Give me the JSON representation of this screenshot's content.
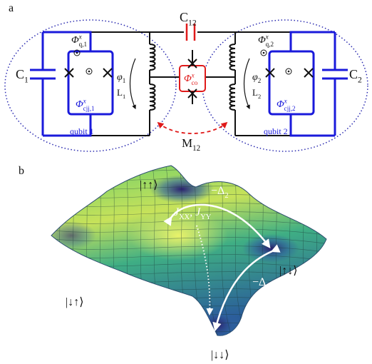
{
  "panel_a": {
    "label": "a",
    "c12": {
      "base": "C",
      "sub": "12"
    },
    "c1": {
      "base": "C",
      "sub": "1"
    },
    "c2": {
      "base": "C",
      "sub": "2"
    },
    "phi_q1": {
      "base": "Φ",
      "sup": "x",
      "sub": "q,1"
    },
    "phi_cjj1": {
      "base": "Φ",
      "sup": "x",
      "sub": "cjj,1"
    },
    "phase1": {
      "base": "φ",
      "sub": "1"
    },
    "l1": {
      "base": "L",
      "sub": "1"
    },
    "phi_co": {
      "base": "Φ",
      "sup": "x",
      "sub": "co"
    },
    "phase2": {
      "base": "φ",
      "sub": "2"
    },
    "l2": {
      "base": "L",
      "sub": "2"
    },
    "phi_q2": {
      "base": "Φ",
      "sup": "x",
      "sub": "q,2"
    },
    "phi_cjj2": {
      "base": "Φ",
      "sup": "x",
      "sub": "cjj,2"
    },
    "qubit1": {
      "base": "qubit 1"
    },
    "qubit2": {
      "base": "qubit 2"
    },
    "m12": {
      "base": "M",
      "sub": "12"
    }
  },
  "panel_b": {
    "label": "b",
    "uu": {
      "base": "|↑↑⟩"
    },
    "delta2": {
      "base": "−Δ",
      "sub": "2"
    },
    "coupling": {
      "base": "J",
      "sub": "XX",
      "base2": ", J",
      "sub2": "YY"
    },
    "ud": {
      "base": "|↑↓⟩"
    },
    "delta1": {
      "base": "−Δ",
      "sub": "1"
    },
    "du": {
      "base": "|↓↑⟩"
    },
    "dd": {
      "base": "|↓↓⟩"
    }
  }
}
